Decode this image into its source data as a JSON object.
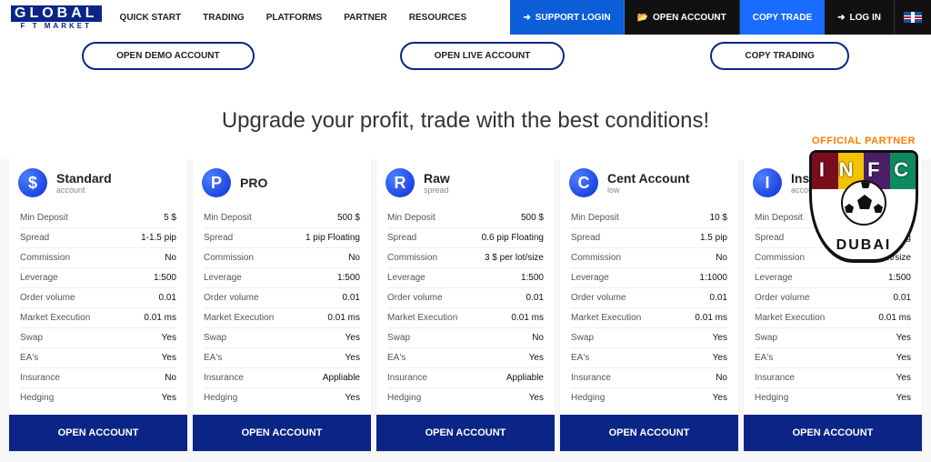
{
  "logo": {
    "main": "GLOBAL",
    "sub": "F T  MARKET"
  },
  "nav": {
    "items": [
      "QUICK START",
      "TRADING",
      "PLATFORMS",
      "PARTNER",
      "RESOURCES"
    ],
    "support": "SUPPORT LOGIN",
    "open_account": "OPEN ACCOUNT",
    "copy_trade": "COPY TRADE",
    "log_in": "LOG IN"
  },
  "pills": {
    "demo": "OPEN DEMO ACCOUNT",
    "live": "OPEN LIVE ACCOUNT",
    "copy": "COPY TRADING"
  },
  "headline": "Upgrade your profit, trade with the best conditions!",
  "specs": [
    "Min Deposit",
    "Spread",
    "Commission",
    "Leverage",
    "Order volume",
    "Market Execution",
    "Swap",
    "EA's",
    "Insurance",
    "Hedging"
  ],
  "plans": [
    {
      "icon": "$",
      "title": "Standard",
      "sub": "account",
      "cta": "OPEN ACCOUNT",
      "values": [
        "5 $",
        "1-1.5 pip",
        "No",
        "1:500",
        "0.01",
        "0.01 ms",
        "Yes",
        "Yes",
        "No",
        "Yes"
      ]
    },
    {
      "icon": "P",
      "title": "PRO",
      "sub": "",
      "cta": "OPEN ACCOUNT",
      "values": [
        "500 $",
        "1 pip Floating",
        "No",
        "1:500",
        "0.01",
        "0.01 ms",
        "Yes",
        "Yes",
        "Appliable",
        "Yes"
      ]
    },
    {
      "icon": "R",
      "title": "Raw",
      "sub": "spread",
      "cta": "OPEN ACCOUNT",
      "values": [
        "500 $",
        "0.6 pip Floating",
        "3 $ per lot/size",
        "1:500",
        "0.01",
        "0.01 ms",
        "No",
        "Yes",
        "Appliable",
        "Yes"
      ]
    },
    {
      "icon": "C",
      "title": "Cent Account",
      "sub": "low",
      "cta": "OPEN ACCOUNT",
      "values": [
        "10 $",
        "1.5 pip",
        "No",
        "1:1000",
        "0.01",
        "0.01 ms",
        "Yes",
        "Yes",
        "No",
        "Yes"
      ]
    },
    {
      "icon": "I",
      "title": "Insurance",
      "sub": "account",
      "cta": "OPEN ACCOUNT",
      "values": [
        "",
        "1 pip Floating",
        "3 $ per lot/size",
        "1:500",
        "0.01",
        "0.01 ms",
        "Yes",
        "Yes",
        "Yes",
        "Yes"
      ]
    }
  ],
  "partner": {
    "label": "OFFICIAL PARTNER",
    "letters": [
      "I",
      "N",
      "F",
      "C"
    ],
    "city": "DUBAI"
  },
  "colors": {
    "brand_blue": "#0b2586",
    "bright_blue": "#1a6bff",
    "dark_blue": "#0b5ed7",
    "orange": "#ff7a00"
  }
}
